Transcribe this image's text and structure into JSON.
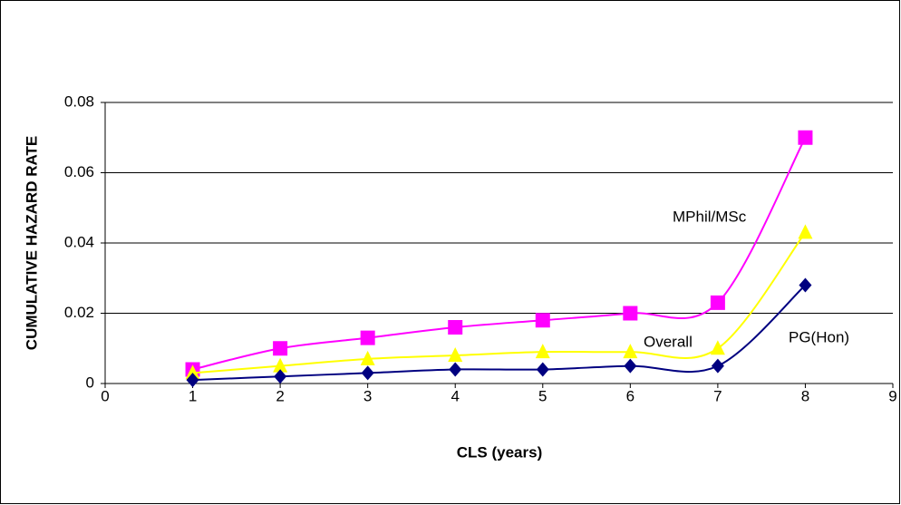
{
  "chart_data": {
    "type": "line",
    "x_label": "CLS (years)",
    "y_label": "CUMULATIVE HAZARD RATE",
    "x": [
      1,
      2,
      3,
      4,
      5,
      6,
      7,
      8
    ],
    "series": [
      {
        "name": "MPhil/MSc",
        "color": "#ff00ff",
        "marker": "square",
        "values": [
          0.004,
          0.01,
          0.013,
          0.016,
          0.018,
          0.02,
          0.023,
          0.07
        ]
      },
      {
        "name": "Overall",
        "color": "#ffff00",
        "marker": "triangle",
        "values": [
          0.003,
          0.005,
          0.007,
          0.008,
          0.009,
          0.009,
          0.01,
          0.043
        ]
      },
      {
        "name": "PG(Hon)",
        "color": "#000080",
        "marker": "diamond",
        "values": [
          0.001,
          0.002,
          0.003,
          0.004,
          0.004,
          0.005,
          0.005,
          0.028
        ]
      }
    ],
    "xlim": [
      0,
      9
    ],
    "xticks": [
      0,
      1,
      2,
      3,
      4,
      5,
      6,
      7,
      8,
      9
    ],
    "ylim": [
      0,
      0.08
    ],
    "yticks": [
      0,
      0.02,
      0.04,
      0.06,
      0.08
    ],
    "grid": true,
    "smooth": true
  }
}
